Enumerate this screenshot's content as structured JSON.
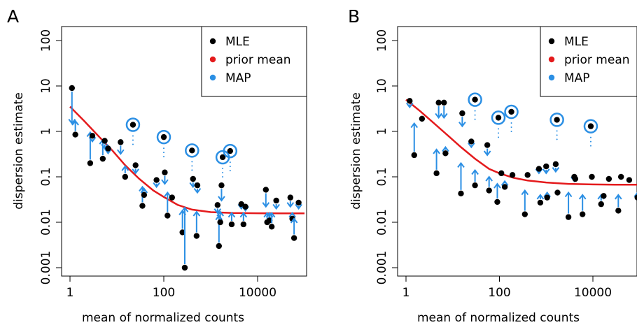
{
  "colors": {
    "mle": "#000000",
    "prior": "#e41a1c",
    "map": "#2b8fe4",
    "axis": "#000000"
  },
  "chart_data": [
    {
      "type": "scatter",
      "panel_label": "A",
      "xlabel": "mean of normalized counts",
      "ylabel": "dispersion estimate",
      "x_scale": "log",
      "y_scale": "log",
      "xlim": [
        0.6,
        150000
      ],
      "ylim": [
        0.0007,
        150
      ],
      "x_tick_values": [
        1,
        100,
        10000
      ],
      "x_tick_labels": [
        "1",
        "100",
        "10000"
      ],
      "y_tick_values": [
        0.001,
        0.01,
        0.1,
        1,
        10,
        100
      ],
      "y_tick_labels": [
        "0.001",
        "0.01",
        "0.1",
        "1",
        "10",
        "100"
      ],
      "grid": false,
      "legend_position": "top-right",
      "legend": [
        {
          "label": "MLE",
          "key": "mle"
        },
        {
          "label": "prior mean",
          "key": "prior"
        },
        {
          "label": "MAP",
          "key": "map"
        }
      ],
      "prior_curve": {
        "x": [
          1,
          2,
          4,
          8,
          15,
          30,
          60,
          100,
          200,
          400,
          1000,
          3000,
          10000,
          30000,
          60000,
          100000
        ],
        "y": [
          3.5,
          1.7,
          0.8,
          0.38,
          0.18,
          0.09,
          0.05,
          0.036,
          0.024,
          0.019,
          0.0167,
          0.016,
          0.0158,
          0.0157,
          0.0157,
          0.0157
        ]
      },
      "points": [
        {
          "x": 1.1,
          "mle": 9.0,
          "map": 1.5
        },
        {
          "x": 1.3,
          "mle": 0.85,
          "map": 1.7
        },
        {
          "x": 2.7,
          "mle": 0.2,
          "map": 0.95
        },
        {
          "x": 3.0,
          "mle": 0.8,
          "map": 0.6
        },
        {
          "x": 5.0,
          "mle": 0.25,
          "map": 0.65
        },
        {
          "x": 5.5,
          "mle": 0.62,
          "map": 0.42
        },
        {
          "x": 6.5,
          "mle": 0.42,
          "map": 0.33
        },
        {
          "x": 12,
          "mle": 0.58,
          "map": 0.32
        },
        {
          "x": 15,
          "mle": 0.1,
          "map": 0.17
        },
        {
          "x": 22,
          "mle": 1.4,
          "map": 1.4,
          "outlier": true
        },
        {
          "x": 25,
          "mle": 0.18,
          "map": 0.12
        },
        {
          "x": 35,
          "mle": 0.023,
          "map": 0.06
        },
        {
          "x": 38,
          "mle": 0.04,
          "map": 0.055
        },
        {
          "x": 70,
          "mle": 0.085,
          "map": 0.06
        },
        {
          "x": 100,
          "mle": 0.75,
          "map": 0.75,
          "outlier": true
        },
        {
          "x": 105,
          "mle": 0.125,
          "map": 0.07
        },
        {
          "x": 120,
          "mle": 0.014,
          "map": 0.045
        },
        {
          "x": 150,
          "mle": 0.035,
          "map": 0.03
        },
        {
          "x": 250,
          "mle": 0.006,
          "map": 0.018
        },
        {
          "x": 280,
          "mle": 0.001,
          "map": 0.021
        },
        {
          "x": 400,
          "mle": 0.38,
          "map": 0.38,
          "outlier": true
        },
        {
          "x": 420,
          "mle": 0.09,
          "map": 0.06
        },
        {
          "x": 500,
          "mle": 0.005,
          "map": 0.017
        },
        {
          "x": 520,
          "mle": 0.065,
          "map": 0.045
        },
        {
          "x": 1400,
          "mle": 0.024,
          "map": 0.016
        },
        {
          "x": 1500,
          "mle": 0.003,
          "map": 0.014
        },
        {
          "x": 1600,
          "mle": 0.01,
          "map": 0.017
        },
        {
          "x": 1700,
          "mle": 0.065,
          "map": 0.03
        },
        {
          "x": 1800,
          "mle": 0.27,
          "map": 0.27,
          "outlier": true
        },
        {
          "x": 2600,
          "mle": 0.37,
          "map": 0.37,
          "outlier": true
        },
        {
          "x": 2800,
          "mle": 0.009,
          "map": 0.016
        },
        {
          "x": 4500,
          "mle": 0.025,
          "map": 0.02
        },
        {
          "x": 5000,
          "mle": 0.009,
          "map": 0.016
        },
        {
          "x": 5500,
          "mle": 0.022,
          "map": 0.018
        },
        {
          "x": 15000,
          "mle": 0.052,
          "map": 0.022
        },
        {
          "x": 16000,
          "mle": 0.01,
          "map": 0.016
        },
        {
          "x": 18000,
          "mle": 0.011,
          "map": 0.016
        },
        {
          "x": 20000,
          "mle": 0.008,
          "map": 0.016
        },
        {
          "x": 25000,
          "mle": 0.03,
          "map": 0.02
        },
        {
          "x": 50000,
          "mle": 0.035,
          "map": 0.022
        },
        {
          "x": 55000,
          "mle": 0.012,
          "map": 0.016
        },
        {
          "x": 60000,
          "mle": 0.0045,
          "map": 0.012
        },
        {
          "x": 75000,
          "mle": 0.027,
          "map": 0.02
        }
      ]
    },
    {
      "type": "scatter",
      "panel_label": "B",
      "xlabel": "mean of normalized counts",
      "ylabel": "dispersion estimate",
      "x_scale": "log",
      "y_scale": "log",
      "xlim": [
        0.6,
        150000
      ],
      "ylim": [
        0.0007,
        150
      ],
      "x_tick_values": [
        1,
        100,
        10000
      ],
      "x_tick_labels": [
        "1",
        "100",
        "10000"
      ],
      "y_tick_values": [
        0.001,
        0.01,
        0.1,
        1,
        10,
        100
      ],
      "y_tick_labels": [
        "0.001",
        "0.01",
        "0.1",
        "1",
        "10",
        "100"
      ],
      "grid": false,
      "legend_position": "top-right",
      "legend": [
        {
          "label": "MLE",
          "key": "mle"
        },
        {
          "label": "prior mean",
          "key": "prior"
        },
        {
          "label": "MAP",
          "key": "map"
        }
      ],
      "prior_curve": {
        "x": [
          1,
          2,
          4,
          8,
          15,
          30,
          60,
          100,
          200,
          400,
          1000,
          3000,
          10000,
          30000,
          60000,
          100000
        ],
        "y": [
          5.0,
          2.8,
          1.5,
          0.8,
          0.45,
          0.25,
          0.15,
          0.12,
          0.095,
          0.083,
          0.075,
          0.07,
          0.068,
          0.067,
          0.067,
          0.067
        ]
      },
      "points": [
        {
          "x": 1.2,
          "mle": 4.7,
          "map": 3.4
        },
        {
          "x": 1.5,
          "mle": 0.3,
          "map": 1.5
        },
        {
          "x": 2.2,
          "mle": 1.9,
          "map": 1.7
        },
        {
          "x": 4.5,
          "mle": 0.12,
          "map": 0.4
        },
        {
          "x": 5.0,
          "mle": 4.3,
          "map": 2.0
        },
        {
          "x": 6.5,
          "mle": 4.3,
          "map": 2.0
        },
        {
          "x": 7.0,
          "mle": 0.33,
          "map": 0.45
        },
        {
          "x": 15,
          "mle": 0.043,
          "map": 0.2
        },
        {
          "x": 16,
          "mle": 2.5,
          "map": 1.3
        },
        {
          "x": 25,
          "mle": 0.6,
          "map": 0.45
        },
        {
          "x": 30,
          "mle": 5.0,
          "map": 5.0,
          "outlier": true
        },
        {
          "x": 30,
          "mle": 0.065,
          "map": 0.14
        },
        {
          "x": 55,
          "mle": 0.5,
          "map": 0.3
        },
        {
          "x": 60,
          "mle": 0.05,
          "map": 0.1
        },
        {
          "x": 90,
          "mle": 0.028,
          "map": 0.07
        },
        {
          "x": 95,
          "mle": 2.0,
          "map": 2.0,
          "outlier": true
        },
        {
          "x": 110,
          "mle": 0.12,
          "map": 0.12
        },
        {
          "x": 130,
          "mle": 0.06,
          "map": 0.08
        },
        {
          "x": 180,
          "mle": 2.7,
          "map": 2.7,
          "outlier": true
        },
        {
          "x": 190,
          "mle": 0.11,
          "map": 0.1
        },
        {
          "x": 350,
          "mle": 0.015,
          "map": 0.05
        },
        {
          "x": 400,
          "mle": 0.11,
          "map": 0.1
        },
        {
          "x": 700,
          "mle": 0.15,
          "map": 0.12
        },
        {
          "x": 750,
          "mle": 0.027,
          "map": 0.04
        },
        {
          "x": 1000,
          "mle": 0.17,
          "map": 0.12
        },
        {
          "x": 1050,
          "mle": 0.035,
          "map": 0.045
        },
        {
          "x": 1600,
          "mle": 0.19,
          "map": 0.13
        },
        {
          "x": 1700,
          "mle": 1.8,
          "map": 1.8,
          "outlier": true
        },
        {
          "x": 1750,
          "mle": 0.045,
          "map": 0.05
        },
        {
          "x": 3000,
          "mle": 0.013,
          "map": 0.045
        },
        {
          "x": 4000,
          "mle": 0.1,
          "map": 0.08
        },
        {
          "x": 4200,
          "mle": 0.09,
          "map": 0.08
        },
        {
          "x": 6000,
          "mle": 0.015,
          "map": 0.04
        },
        {
          "x": 9000,
          "mle": 1.3,
          "map": 1.3,
          "outlier": true
        },
        {
          "x": 9500,
          "mle": 0.1,
          "map": 0.09
        },
        {
          "x": 15000,
          "mle": 0.025,
          "map": 0.04
        },
        {
          "x": 17000,
          "mle": 0.038,
          "map": 0.045
        },
        {
          "x": 22000,
          "mle": 0.09,
          "map": 0.08
        },
        {
          "x": 35000,
          "mle": 0.018,
          "map": 0.04
        },
        {
          "x": 40000,
          "mle": 0.1,
          "map": 0.09
        },
        {
          "x": 60000,
          "mle": 0.085,
          "map": 0.075
        },
        {
          "x": 90000,
          "mle": 0.035,
          "map": 0.045
        }
      ]
    }
  ]
}
